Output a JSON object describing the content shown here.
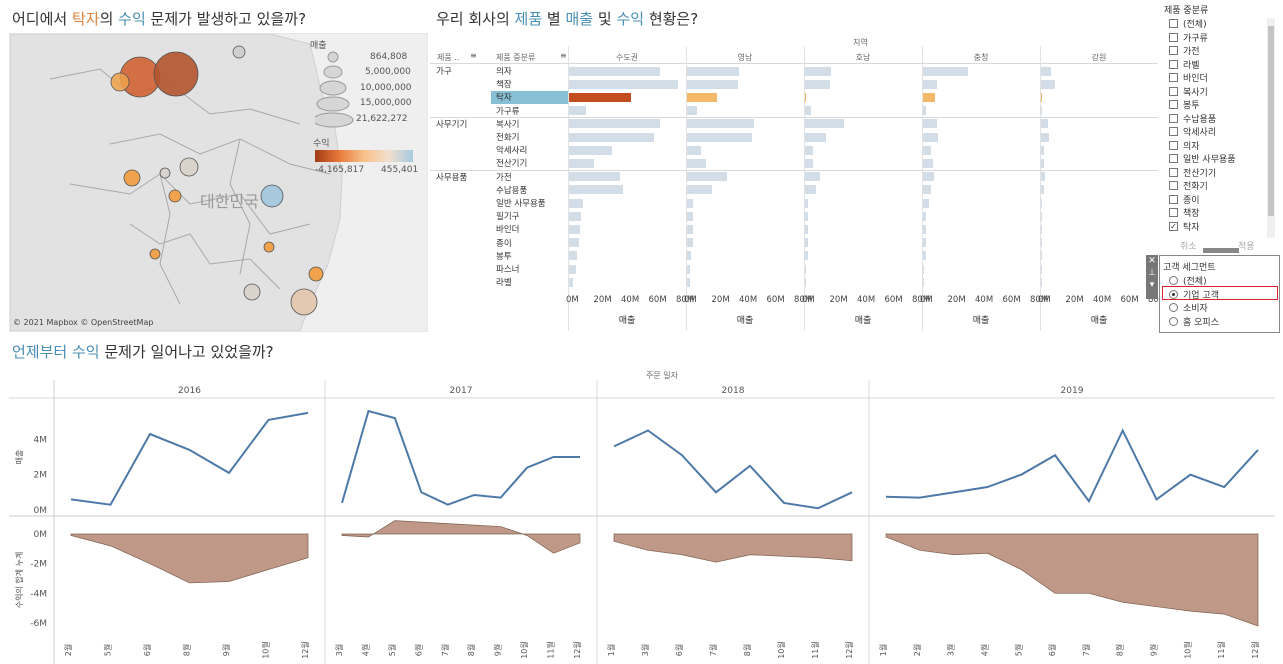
{
  "map_section": {
    "title_parts": [
      "어디에서 ",
      "탁자",
      "의 ",
      "수익",
      " 문제가 발생하고 있을까?"
    ],
    "country_label": "대한민국",
    "attribution": "© 2021 Mapbox © OpenStreetMap",
    "size_legend": {
      "title": "매출",
      "values": [
        "864,808",
        "5,000,000",
        "10,000,000",
        "15,000,000",
        "21,622,272"
      ]
    },
    "color_legend": {
      "title": "수익",
      "min": "-4,165,817",
      "max": "455,401"
    }
  },
  "bar_section": {
    "title_parts": [
      "우리 회사의 ",
      "제품",
      " 별 ",
      "매출",
      " 및 ",
      "수익",
      " 현황은?"
    ],
    "region_header": "지역",
    "col_header_category": "제품 ..",
    "col_header_subcategory": "제품 중분류",
    "regions": [
      "수도권",
      "영남",
      "호남",
      "충청",
      "강원"
    ],
    "axis_ticks": [
      "0M",
      "20M",
      "40M",
      "60M",
      "80M"
    ],
    "axis_title": "매출",
    "groups": [
      {
        "name": "가구",
        "rows": [
          "의자",
          "책장",
          "탁자",
          "가구류"
        ]
      },
      {
        "name": "사무기기",
        "rows": [
          "복사기",
          "전화기",
          "악세사리",
          "전산기기"
        ]
      },
      {
        "name": "사무용품",
        "rows": [
          "가전",
          "수납용품",
          "일반 사무용품",
          "필기구",
          "바인더",
          "종이",
          "봉투",
          "파스너",
          "라벨"
        ]
      }
    ],
    "highlight_row": "탁자"
  },
  "chart_data": [
    {
      "type": "bar",
      "title": "우리 회사의 제품 별 매출 및 수익 현황은?",
      "xlabel": "매출",
      "ylabel": "제품 중분류",
      "xlim": [
        0,
        80
      ],
      "units": "M",
      "categories": [
        "의자",
        "책장",
        "탁자",
        "가구류",
        "복사기",
        "전화기",
        "악세사리",
        "전산기기",
        "가전",
        "수납용품",
        "일반 사무용품",
        "필기구",
        "바인더",
        "종이",
        "봉투",
        "파스너",
        "라벨"
      ],
      "series": [
        {
          "name": "수도권",
          "values": [
            66,
            79,
            45,
            12,
            66,
            62,
            31,
            18,
            37,
            39,
            10,
            9,
            8,
            7,
            6,
            5,
            3
          ]
        },
        {
          "name": "영남",
          "values": [
            38,
            37,
            22,
            7,
            49,
            47,
            10,
            14,
            29,
            18,
            4,
            4,
            4,
            4,
            3,
            2,
            2
          ]
        },
        {
          "name": "호남",
          "values": [
            19,
            18,
            1,
            4,
            28,
            15,
            6,
            6,
            11,
            8,
            2,
            2,
            2,
            2,
            2,
            1,
            1
          ]
        },
        {
          "name": "충청",
          "values": [
            33,
            10,
            9,
            2,
            10,
            11,
            6,
            7,
            8,
            6,
            4,
            2,
            2,
            2,
            2,
            1,
            1
          ]
        },
        {
          "name": "강원",
          "values": [
            7,
            10,
            1,
            1,
            5,
            6,
            2,
            2,
            3,
            2,
            1,
            1,
            1,
            1,
            1,
            1,
            0
          ]
        }
      ]
    },
    {
      "type": "line",
      "title": "언제부터 수익 문제가 일어나고 있었을까?",
      "ylabel": "매출",
      "ylim": [
        0,
        6
      ],
      "units": "M",
      "years": [
        "2016",
        "2017",
        "2018",
        "2019"
      ],
      "series": [
        {
          "year": "2016",
          "months": [
            "2월",
            "5월",
            "6월",
            "8월",
            "9월",
            "10월",
            "12월"
          ],
          "values": [
            0.6,
            0.3,
            4.3,
            3.4,
            2.1,
            5.1,
            5.5
          ]
        },
        {
          "year": "2017",
          "months": [
            "3월",
            "4월",
            "5월",
            "6월",
            "7월",
            "8월",
            "9월",
            "10월",
            "11월",
            "12월"
          ],
          "values": [
            0.4,
            5.6,
            5.2,
            1.0,
            0.3,
            0.85,
            0.7,
            2.4,
            3.0,
            3.0
          ]
        },
        {
          "year": "2018",
          "months": [
            "1월",
            "3월",
            "6월",
            "7월",
            "8월",
            "10월",
            "11월",
            "12월"
          ],
          "values": [
            3.6,
            4.5,
            3.1,
            1.0,
            2.5,
            0.4,
            0.1,
            1.0
          ]
        },
        {
          "year": "2019",
          "months": [
            "1월",
            "2월",
            "3월",
            "4월",
            "5월",
            "6월",
            "7월",
            "8월",
            "9월",
            "10월",
            "11월",
            "12월"
          ],
          "values": [
            0.75,
            0.7,
            1.0,
            1.3,
            2.0,
            3.1,
            0.5,
            4.5,
            0.6,
            2.0,
            1.3,
            3.4
          ]
        }
      ]
    },
    {
      "type": "area",
      "ylabel": "수익의 합계 누계",
      "ylim": [
        -6.5,
        1
      ],
      "units": "M",
      "series": [
        {
          "year": "2016",
          "values": [
            -0.1,
            -0.8,
            -2.0,
            -3.3,
            -3.2,
            -2.4,
            -1.6
          ]
        },
        {
          "year": "2017",
          "values": [
            -0.1,
            -0.2,
            0.9,
            0.8,
            0.7,
            0.6,
            0.5,
            -0.1,
            -1.3,
            -0.6
          ]
        },
        {
          "year": "2018",
          "values": [
            -0.5,
            -1.1,
            -1.4,
            -1.9,
            -1.4,
            -1.5,
            -1.6,
            -1.8
          ]
        },
        {
          "year": "2019",
          "values": [
            -0.2,
            -1.1,
            -1.4,
            -1.3,
            -2.4,
            -4.0,
            -4.0,
            -4.6,
            -4.9,
            -5.2,
            -5.4,
            -6.2
          ]
        }
      ]
    }
  ],
  "time_section": {
    "title_parts": [
      "언제부터 ",
      "수익",
      " 문제가 일어나고 있었을까?"
    ],
    "x_header": "주문 일자",
    "sales_ticks": [
      "0M",
      "2M",
      "4M"
    ],
    "profit_ticks": [
      "0M",
      "-2M",
      "-4M",
      "-6M"
    ],
    "sales_label": "매출",
    "profit_label": "수익의 합계 누계"
  },
  "filter_product": {
    "title": "제품 중분류",
    "items": [
      {
        "label": "(전체)",
        "checked": false
      },
      {
        "label": "가구류",
        "checked": false
      },
      {
        "label": "가전",
        "checked": false
      },
      {
        "label": "라벨",
        "checked": false
      },
      {
        "label": "바인더",
        "checked": false
      },
      {
        "label": "복사기",
        "checked": false
      },
      {
        "label": "봉투",
        "checked": false
      },
      {
        "label": "수납용품",
        "checked": false
      },
      {
        "label": "악세사리",
        "checked": false
      },
      {
        "label": "의자",
        "checked": false
      },
      {
        "label": "일반 사무용품",
        "checked": false
      },
      {
        "label": "전산기기",
        "checked": false
      },
      {
        "label": "전화기",
        "checked": false
      },
      {
        "label": "종이",
        "checked": false
      },
      {
        "label": "책장",
        "checked": false
      },
      {
        "label": "탁자",
        "checked": true
      }
    ],
    "cancel_label": "취소",
    "apply_label": "적용"
  },
  "filter_segment": {
    "title": "고객 세그먼트",
    "options": [
      "(전체)",
      "기업 고객",
      "소비자",
      "홈 오피스"
    ],
    "selected": "기업 고객"
  },
  "colors": {
    "accent_blue": "#4e79a7",
    "profit_area": "#b88d7a",
    "highlight_row": "#87c0d4",
    "bar_default": "#d3dde8",
    "bar_red": "#c44d1f",
    "bar_orange": "#f3b969"
  }
}
